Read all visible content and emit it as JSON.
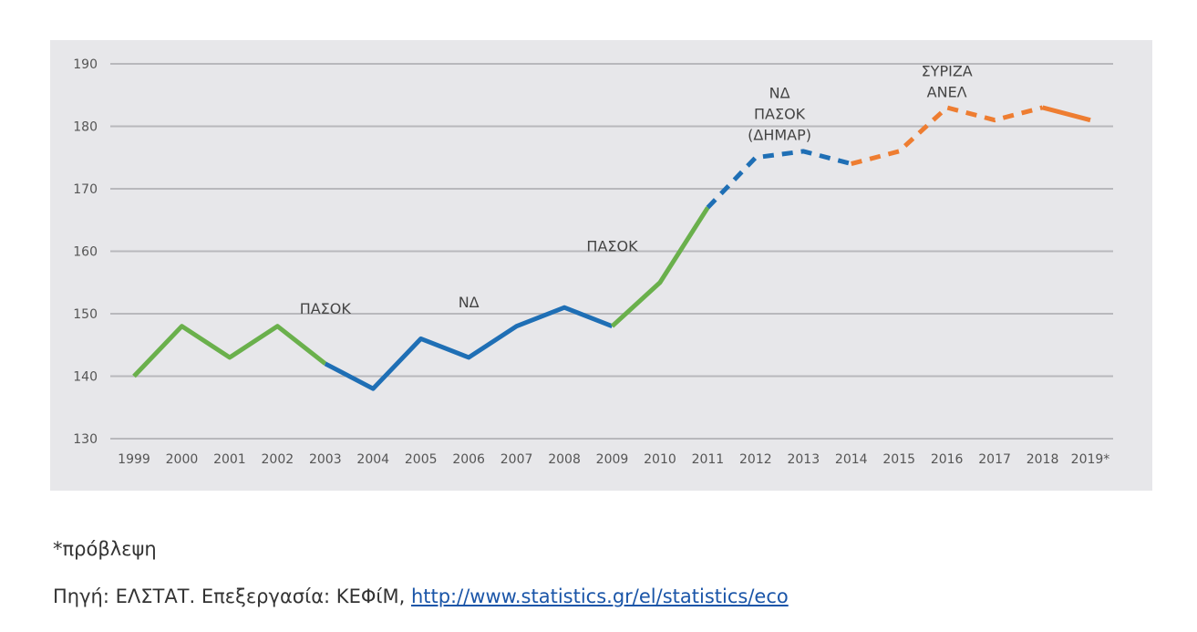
{
  "chart_data": {
    "type": "line",
    "title": "",
    "xlabel": "",
    "ylabel": "",
    "categories": [
      "1999",
      "2000",
      "2001",
      "2002",
      "2003",
      "2004",
      "2005",
      "2006",
      "2007",
      "2008",
      "2009",
      "2010",
      "2011",
      "2012",
      "2013",
      "2014",
      "2015",
      "2016",
      "2017",
      "2018",
      "2019*"
    ],
    "values": [
      140,
      148,
      143,
      148,
      142,
      138,
      146,
      143,
      148,
      151,
      148,
      155,
      167,
      175,
      176,
      174,
      176,
      183,
      181,
      183,
      181
    ],
    "ylim": [
      130,
      190
    ],
    "yticks": [
      130,
      140,
      150,
      160,
      170,
      180,
      190
    ],
    "grid": true,
    "segments": [
      {
        "from": "1999",
        "to": "2003",
        "color": "#6ab04c",
        "style": "solid"
      },
      {
        "from": "2003",
        "to": "2009",
        "color": "#1f6fb5",
        "style": "solid"
      },
      {
        "from": "2009",
        "to": "2011",
        "color": "#6ab04c",
        "style": "solid"
      },
      {
        "from": "2011",
        "to": "2014",
        "color": "#1f6fb5",
        "style": "dashed"
      },
      {
        "from": "2014",
        "to": "2018",
        "color": "#ee7d31",
        "style": "dashed"
      },
      {
        "from": "2018",
        "to": "2019*",
        "color": "#ee7d31",
        "style": "solid"
      }
    ],
    "annotations": [
      {
        "lines": [
          "ΠΑΣΟΚ"
        ],
        "x": "2003",
        "y": 150
      },
      {
        "lines": [
          "ΝΔ"
        ],
        "x": "2006",
        "y": 151
      },
      {
        "lines": [
          "ΠΑΣΟΚ"
        ],
        "x": "2009",
        "y": 160
      },
      {
        "lines": [
          "ΝΔ",
          "ΠΑΣΟΚ",
          "(ΔΗΜΑΡ)"
        ],
        "x": "2012.5",
        "y": 184.5
      },
      {
        "lines": [
          "ΣΥΡΙΖΑ",
          "ΑΝΕΛ"
        ],
        "x": "2016",
        "y": 188
      }
    ],
    "colors": {
      "green": "#6ab04c",
      "blue": "#1f6fb5",
      "orange": "#ee7d31",
      "grid": "#b8b8bc",
      "background": "#e7e7ea"
    }
  },
  "footnote": "*πρόβλεψη",
  "source": {
    "prefix": "Πηγή: ΕΛΣΤΑΤ. Επεξεργασία: ΚΕΦίΜ, ",
    "link_text": "http://www.statistics.gr/el/statistics/eco"
  }
}
